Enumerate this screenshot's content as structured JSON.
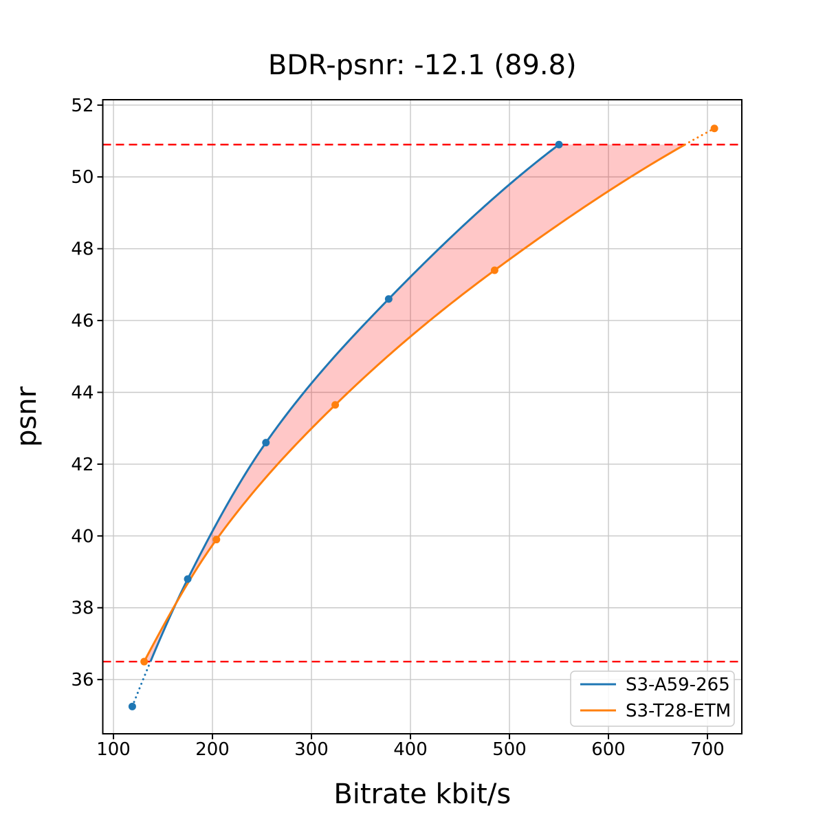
{
  "chart_data": {
    "type": "line",
    "title": "BDR-psnr: -12.1 (89.8)",
    "xlabel": "Bitrate kbit/s",
    "ylabel": "psnr",
    "xlim": [
      89.2,
      734.7
    ],
    "ylim": [
      34.49,
      52.15
    ],
    "xticks": [
      100,
      200,
      300,
      400,
      500,
      600,
      700
    ],
    "yticks": [
      36,
      38,
      40,
      42,
      44,
      46,
      48,
      50,
      52
    ],
    "grid": true,
    "grid_color": "#c8c8c8",
    "legend_position": "lower right",
    "series": [
      {
        "name": "S3-A59-265",
        "color": "#1f77b4",
        "marker": "circle",
        "x": [
          119,
          175,
          254,
          378,
          550
        ],
        "y": [
          35.25,
          38.8,
          42.6,
          46.6,
          50.9
        ],
        "dotted_segment": "below_overlap"
      },
      {
        "name": "S3-T28-ETM",
        "color": "#ff7f0e",
        "marker": "circle",
        "x": [
          131,
          204,
          324,
          485,
          707
        ],
        "y": [
          36.5,
          39.9,
          43.65,
          47.4,
          51.35
        ],
        "dotted_segment": "above_overlap"
      }
    ],
    "overlap_bounds_psnr": [
      36.5,
      50.9
    ],
    "hline_color": "#ff0000",
    "hline_style": "dashed",
    "fill_between": {
      "lower_psnr": 36.5,
      "upper_psnr": 50.9,
      "color": "#ff0000",
      "opacity": 0.22
    }
  }
}
